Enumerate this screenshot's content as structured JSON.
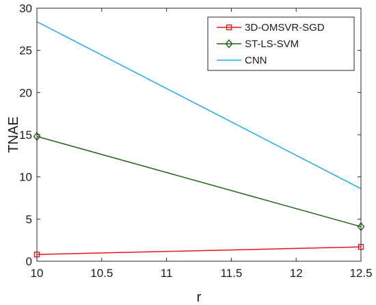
{
  "chart_data": {
    "type": "line",
    "title": "",
    "xlabel": "r",
    "ylabel": "TNAE",
    "xlim": [
      10,
      12.5
    ],
    "ylim": [
      0,
      30
    ],
    "xticks": [
      10,
      10.5,
      11,
      11.5,
      12,
      12.5
    ],
    "xtick_labels": [
      "10",
      "10.5",
      "11",
      "11.5",
      "12",
      "12.5"
    ],
    "yticks": [
      0,
      5,
      10,
      15,
      20,
      25,
      30
    ],
    "ytick_labels": [
      "0",
      "5",
      "10",
      "15",
      "20",
      "25",
      "30"
    ],
    "grid": false,
    "legend_position": "top-right",
    "x": [
      10,
      12.5
    ],
    "series": [
      {
        "name": "3D-OMSVR-SGD",
        "values": [
          0.8,
          1.7
        ],
        "color": "#e8141e",
        "marker": "square"
      },
      {
        "name": "ST-LS-SVM",
        "values": [
          14.8,
          4.1
        ],
        "color": "#1e6414",
        "marker": "diamond"
      },
      {
        "name": "CNN",
        "values": [
          28.4,
          8.6
        ],
        "color": "#1ea8f0",
        "marker": "none"
      }
    ]
  }
}
